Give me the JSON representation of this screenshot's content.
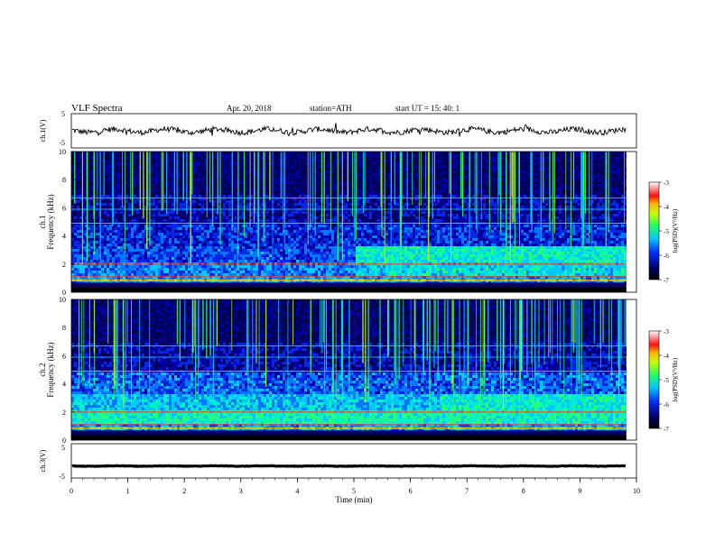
{
  "header": {
    "title": "VLF  Spectra",
    "date": "Apr. 20, 2018",
    "station": "station=ATH",
    "start": "start  UT  =    15: 40: 1"
  },
  "colorbar": {
    "label": "log(PSD)(V²/Hz)",
    "ticks": [
      "-3",
      "-4",
      "-5",
      "-6",
      "-7"
    ]
  },
  "colors": {
    "background": "#00005a",
    "trace": "#000000"
  },
  "chart_data": [
    {
      "type": "line",
      "ylabel": "ch.1(V)",
      "ylim": [
        -5,
        5
      ],
      "yticks": [
        "5",
        "-5"
      ],
      "xlim": [
        0,
        10
      ],
      "approx_level": 0
    },
    {
      "type": "heatmap",
      "ylabel": "ch.1\nFrequency  (kHz)",
      "ylim": [
        0,
        10
      ],
      "yticks": [
        "0",
        "2",
        "4",
        "6",
        "8",
        "10"
      ],
      "xlim": [
        0,
        10
      ],
      "zlim": [
        -7,
        -3
      ]
    },
    {
      "type": "heatmap",
      "ylabel": "ch.2\nFrequency  (kHz)",
      "ylim": [
        0,
        10
      ],
      "yticks": [
        "0",
        "2",
        "4",
        "6",
        "8",
        "10"
      ],
      "xlim": [
        0,
        10
      ],
      "zlim": [
        -7,
        -3
      ]
    },
    {
      "type": "line",
      "ylabel": "ch.3(V)",
      "ylim": [
        -5,
        5
      ],
      "yticks": [
        "5",
        "-5"
      ],
      "xlim": [
        0,
        10
      ],
      "xlabel": "Time  (min)",
      "xticks": [
        "0",
        "1",
        "2",
        "3",
        "4",
        "5",
        "6",
        "7",
        "8",
        "9",
        "10"
      ],
      "approx_level": -1.5
    }
  ]
}
